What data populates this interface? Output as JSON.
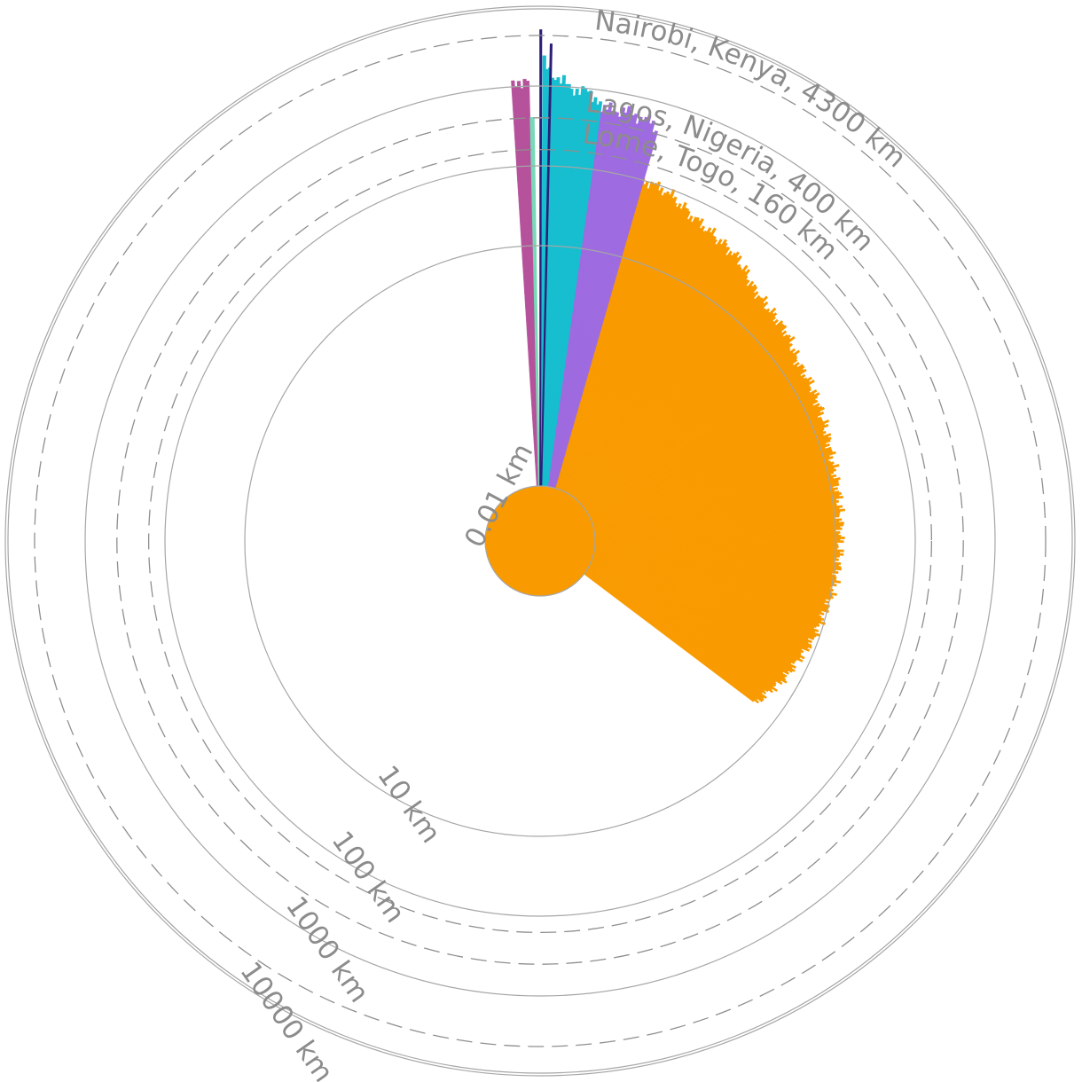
{
  "chart_data": {
    "type": "radial-bar",
    "scale": "log",
    "unit": "km",
    "rings": [
      {
        "value": 0.01,
        "label": "0.01 km"
      },
      {
        "value": 10,
        "label": "10 km"
      },
      {
        "value": 100,
        "label": "100 km"
      },
      {
        "value": 1000,
        "label": "1000 km"
      },
      {
        "value": 10000,
        "label": "10000 km"
      }
    ],
    "references": [
      {
        "value": 160,
        "label": "Lome, Togo, 160 km"
      },
      {
        "value": 400,
        "label": "Lagos, Nigeria, 400 km"
      },
      {
        "value": 4300,
        "label": "Nairobi, Kenya, 4300 km"
      }
    ],
    "series": [
      {
        "color": "#f99b00",
        "start_deg": 3.5,
        "end_deg": 127,
        "profile": [
          [
            3.5,
            320
          ],
          [
            8,
            195
          ],
          [
            12,
            150
          ],
          [
            15,
            105
          ],
          [
            20,
            90
          ],
          [
            25,
            62
          ],
          [
            30,
            50
          ],
          [
            35,
            42
          ],
          [
            40,
            28
          ],
          [
            45,
            24
          ],
          [
            50,
            22
          ],
          [
            55,
            17
          ],
          [
            60,
            16.5
          ],
          [
            65,
            15
          ],
          [
            70,
            13.5
          ],
          [
            75,
            12.5
          ],
          [
            80,
            12.2
          ],
          [
            85,
            11.8
          ],
          [
            90,
            11.5
          ],
          [
            95,
            11.2
          ],
          [
            100,
            10.5
          ],
          [
            105,
            9.2
          ],
          [
            110,
            8.6
          ],
          [
            115,
            7.2
          ],
          [
            120,
            6.4
          ],
          [
            124,
            5.2
          ],
          [
            127,
            5.0
          ]
        ]
      },
      {
        "color": "#9e6be0",
        "start_deg": 3.0,
        "end_deg": 16,
        "profile": [
          [
            3,
            480
          ],
          [
            7,
            560
          ],
          [
            11,
            620
          ],
          [
            14,
            560
          ],
          [
            16,
            460
          ]
        ]
      },
      {
        "color": "#17becf",
        "start_deg": 0.3,
        "end_deg": 8,
        "profile": [
          [
            0.3,
            2000
          ],
          [
            1.5,
            1500
          ],
          [
            2.5,
            1150
          ],
          [
            4,
            980
          ],
          [
            5.5,
            900
          ],
          [
            7,
            820
          ],
          [
            8,
            700
          ]
        ]
      },
      {
        "color": "#b5529b",
        "start_deg": -3.6,
        "end_deg": -1.4,
        "profile": [
          [
            -3.6,
            1150
          ],
          [
            -2.5,
            1180
          ],
          [
            -1.4,
            1100
          ]
        ]
      },
      {
        "color": "#79d8b8",
        "start_deg": -1.3,
        "end_deg": -0.9,
        "profile": [
          [
            -1.3,
            500
          ],
          [
            -0.9,
            450
          ]
        ]
      },
      {
        "color": "#2b1e78",
        "start_deg": 0.0,
        "end_deg": 0.1,
        "profile": [
          [
            0.0,
            6500
          ],
          [
            0.1,
            6500
          ]
        ]
      },
      {
        "color": "#2b1e78",
        "start_deg": 1.2,
        "end_deg": 1.3,
        "profile": [
          [
            1.2,
            3600
          ],
          [
            1.3,
            3600
          ]
        ]
      }
    ],
    "center_disc": {
      "color": "#f99b00",
      "value": 0.01
    }
  }
}
